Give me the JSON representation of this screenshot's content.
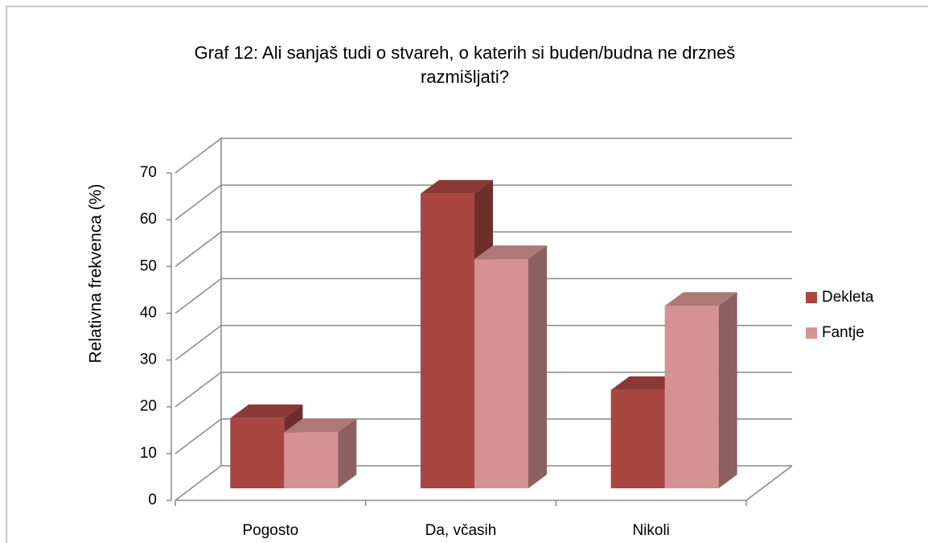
{
  "chart_data": {
    "type": "bar3d",
    "title": [
      "Graf 12: Ali sanjaš tudi o stvareh, o katerih si buden/budna ne drzneš",
      "razmišljati?"
    ],
    "y_label": "Relativna frekvenca (%)",
    "categories": [
      "Pogosto",
      "Da, včasih",
      "Nikoli"
    ],
    "series": [
      {
        "name": "Dekleta",
        "color": "#a84642",
        "values": [
          15,
          63,
          21
        ]
      },
      {
        "name": "Fantje",
        "color": "#d49291",
        "values": [
          12,
          49,
          39
        ]
      }
    ],
    "ylim": [
      0,
      70
    ],
    "yticks": [
      0,
      10,
      20,
      30,
      40,
      50,
      60,
      70
    ],
    "grid": true,
    "legend": "right"
  }
}
